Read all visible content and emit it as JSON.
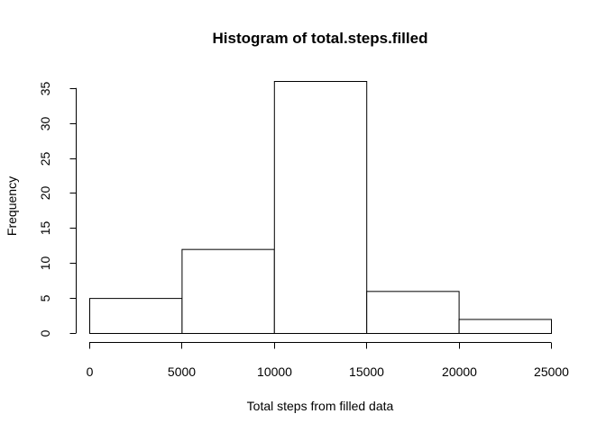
{
  "chart_data": {
    "type": "bar",
    "title": "Histogram of total.steps.filled",
    "xlabel": "Total steps from filled data",
    "ylabel": "Frequency",
    "bins": [
      [
        0,
        5000
      ],
      [
        5000,
        10000
      ],
      [
        10000,
        15000
      ],
      [
        15000,
        20000
      ],
      [
        20000,
        25000
      ]
    ],
    "values": [
      5,
      12,
      36,
      6,
      2
    ],
    "xticks": [
      0,
      5000,
      10000,
      15000,
      20000,
      25000
    ],
    "yticks": [
      0,
      5,
      10,
      15,
      20,
      25,
      30,
      35
    ],
    "xlim": [
      0,
      25000
    ],
    "ylim": [
      0,
      36
    ],
    "grid": false,
    "bar_fill": "#ffffff",
    "bar_stroke": "#000000"
  }
}
